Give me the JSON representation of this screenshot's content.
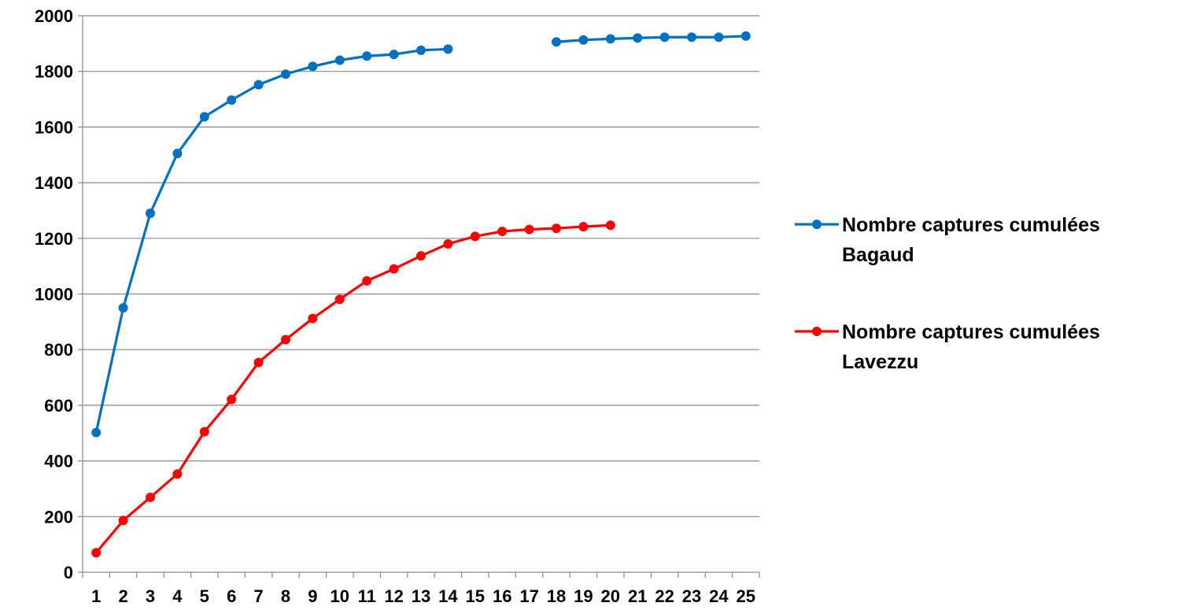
{
  "chart_data": {
    "type": "line",
    "title": "",
    "xlabel": "",
    "ylabel": "",
    "categories": [
      "1",
      "2",
      "3",
      "4",
      "5",
      "6",
      "7",
      "8",
      "9",
      "10",
      "11",
      "12",
      "13",
      "14",
      "15",
      "16",
      "17",
      "18",
      "19",
      "20",
      "21",
      "22",
      "23",
      "24",
      "25"
    ],
    "ylim": [
      0,
      2000
    ],
    "yticks": [
      "0",
      "200",
      "400",
      "600",
      "800",
      "1000",
      "1200",
      "1400",
      "1600",
      "1800",
      "2000"
    ],
    "grid": true,
    "legend_position": "right",
    "series": [
      {
        "name": "Nombre captures cumulées Bagaud",
        "legend_lines": [
          "Nombre captures cumulées",
          "Bagaud"
        ],
        "color": "#0070C0",
        "values": [
          502,
          950,
          1290,
          1505,
          1637,
          1697,
          1752,
          1790,
          1818,
          1840,
          1855,
          1861,
          1876,
          1880,
          null,
          null,
          null,
          1906,
          1913,
          1917,
          1920,
          1923,
          1923,
          1923,
          1927
        ]
      },
      {
        "name": "Nombre captures cumulées Lavezzu",
        "legend_lines": [
          "Nombre captures cumulées",
          "Lavezzu"
        ],
        "color": "#FF0000",
        "values": [
          70,
          186,
          269,
          353,
          505,
          621,
          754,
          836,
          912,
          981,
          1047,
          1090,
          1137,
          1180,
          1207,
          1225,
          1232,
          1236,
          1242,
          1247,
          null,
          null,
          null,
          null,
          null
        ]
      }
    ]
  }
}
